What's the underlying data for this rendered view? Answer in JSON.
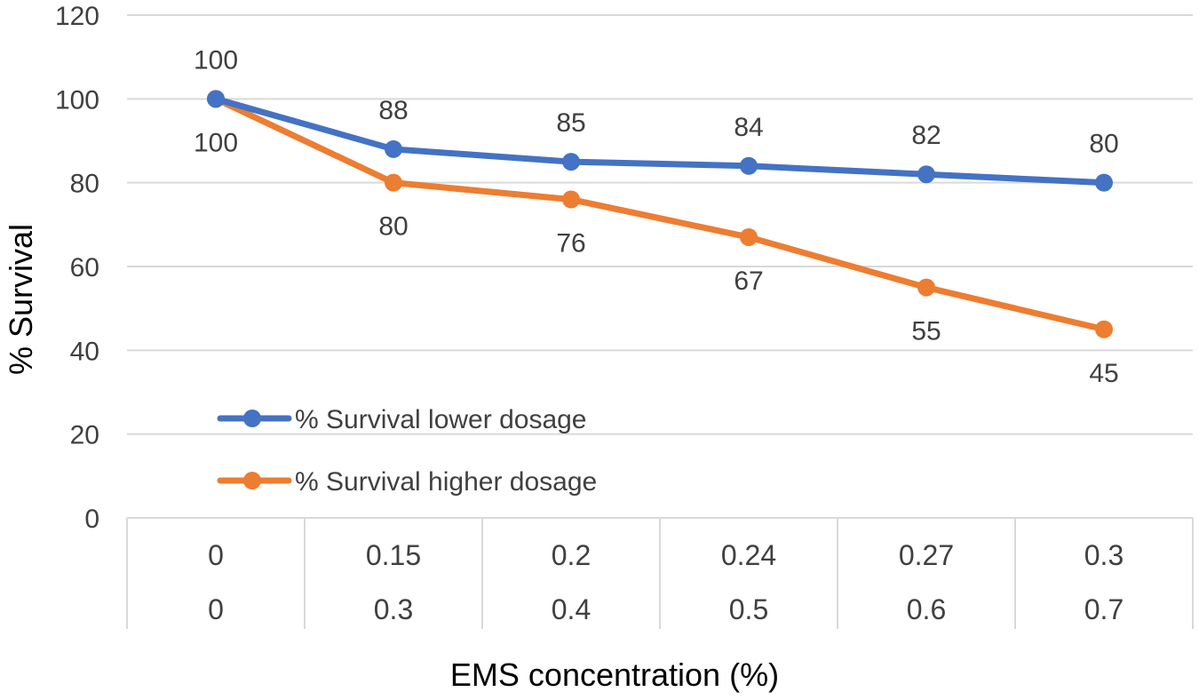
{
  "chart_data": {
    "type": "line",
    "title": "",
    "xlabel": "EMS concentration (%)",
    "ylabel": "% Survival",
    "ylim": [
      0,
      120
    ],
    "yticks": [
      "0",
      "20",
      "40",
      "60",
      "80",
      "100",
      "120"
    ],
    "categories": [
      [
        "0",
        "0"
      ],
      [
        "0.15",
        "0.3"
      ],
      [
        "0.2",
        "0.4"
      ],
      [
        "0.24",
        "0.5"
      ],
      [
        "0.27",
        "0.6"
      ],
      [
        "0.3",
        "0.7"
      ]
    ],
    "series": [
      {
        "name": "% Survival lower dosage",
        "color": "#4472c4",
        "values": [
          100,
          88,
          85,
          84,
          82,
          80
        ],
        "labels": [
          "100",
          "88",
          "85",
          "84",
          "82",
          "80"
        ],
        "label_position": "above"
      },
      {
        "name": "% Survival higher dosage",
        "color": "#ed7d31",
        "values": [
          100,
          80,
          76,
          67,
          55,
          45
        ],
        "labels": [
          "100",
          "80",
          "76",
          "67",
          "55",
          "45"
        ],
        "label_position": "below"
      }
    ],
    "legend_position": "lower-left",
    "grid": true
  }
}
